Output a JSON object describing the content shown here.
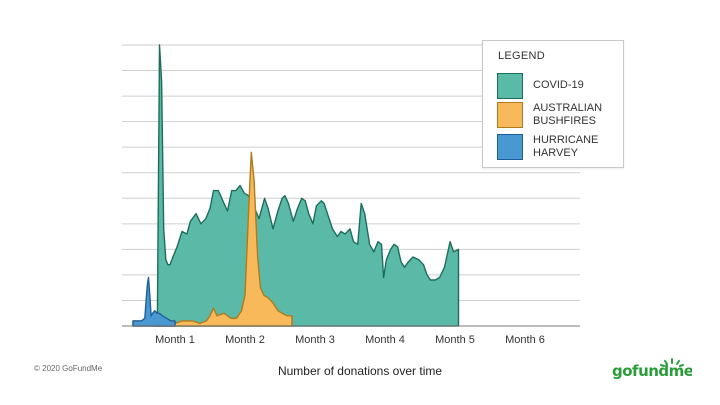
{
  "chart_data": {
    "type": "area",
    "title": "",
    "xlabel": "Number of donations over time",
    "ylabel": "",
    "x_categories": [
      "Month 1",
      "Month 2",
      "Month 3",
      "Month 4",
      "Month 5",
      "Month 6"
    ],
    "x_range": [
      0,
      6.2
    ],
    "ylim": [
      0,
      11
    ],
    "grid": "horizontal",
    "legend": {
      "title": "LEGEND",
      "position": "top-right",
      "entries": [
        {
          "label": "COVID-19",
          "color": "#5bbaa7",
          "edge": "#1c6e5b"
        },
        {
          "label": "AUSTRALIAN BUSHFIRES",
          "label_lines": [
            "AUSTRALIAN",
            "BUSHFIRES"
          ],
          "color": "#f8b95a",
          "edge": "#b07a1e"
        },
        {
          "label": "HURRICANE HARVEY",
          "label_lines": [
            "HURRICANE",
            "HARVEY"
          ],
          "color": "#4a98d2",
          "edge": "#1f5f99"
        }
      ]
    },
    "series": [
      {
        "name": "COVID-19",
        "color": "#5bbaa7",
        "edge": "#1c6e5b",
        "points": [
          [
            0.5,
            0
          ],
          [
            0.58,
            0.3
          ],
          [
            0.63,
            11
          ],
          [
            0.68,
            9.6
          ],
          [
            0.73,
            3.8
          ],
          [
            0.78,
            2.6
          ],
          [
            0.83,
            2.4
          ],
          [
            0.88,
            2.4
          ],
          [
            0.95,
            2.7
          ],
          [
            1.03,
            3.1
          ],
          [
            1.1,
            3.7
          ],
          [
            1.17,
            3.6
          ],
          [
            1.22,
            4.1
          ],
          [
            1.3,
            4.4
          ],
          [
            1.37,
            4.0
          ],
          [
            1.44,
            4.2
          ],
          [
            1.5,
            4.6
          ],
          [
            1.55,
            5.3
          ],
          [
            1.62,
            5.3
          ],
          [
            1.7,
            4.8
          ],
          [
            1.75,
            4.5
          ],
          [
            1.81,
            5.3
          ],
          [
            1.87,
            5.3
          ],
          [
            1.93,
            5.5
          ],
          [
            1.99,
            5.2
          ],
          [
            2.05,
            5.1
          ],
          [
            2.14,
            4.6
          ],
          [
            2.2,
            4.2
          ],
          [
            2.28,
            5.0
          ],
          [
            2.33,
            4.6
          ],
          [
            2.4,
            3.8
          ],
          [
            2.47,
            4.5
          ],
          [
            2.53,
            5.0
          ],
          [
            2.57,
            5.1
          ],
          [
            2.62,
            4.8
          ],
          [
            2.69,
            4.1
          ],
          [
            2.75,
            4.6
          ],
          [
            2.81,
            5.0
          ],
          [
            2.86,
            4.9
          ],
          [
            2.91,
            4.4
          ],
          [
            2.97,
            4.0
          ],
          [
            3.02,
            4.7
          ],
          [
            3.09,
            4.9
          ],
          [
            3.13,
            4.8
          ],
          [
            3.19,
            4.3
          ],
          [
            3.25,
            3.8
          ],
          [
            3.32,
            3.5
          ],
          [
            3.37,
            3.7
          ],
          [
            3.43,
            3.6
          ],
          [
            3.5,
            3.8
          ],
          [
            3.55,
            3.3
          ],
          [
            3.61,
            3.2
          ],
          [
            3.66,
            4.8
          ],
          [
            3.71,
            4.4
          ],
          [
            3.78,
            3.2
          ],
          [
            3.84,
            2.9
          ],
          [
            3.9,
            3.3
          ],
          [
            3.95,
            3.2
          ],
          [
            3.98,
            1.9
          ],
          [
            4.02,
            2.6
          ],
          [
            4.08,
            3.0
          ],
          [
            4.13,
            3.2
          ],
          [
            4.18,
            3.1
          ],
          [
            4.23,
            2.5
          ],
          [
            4.28,
            2.3
          ],
          [
            4.33,
            2.5
          ],
          [
            4.4,
            2.7
          ],
          [
            4.48,
            2.6
          ],
          [
            4.55,
            2.4
          ],
          [
            4.6,
            2.0
          ],
          [
            4.65,
            1.8
          ],
          [
            4.72,
            1.8
          ],
          [
            4.78,
            1.9
          ],
          [
            4.85,
            2.3
          ],
          [
            4.93,
            3.3
          ],
          [
            4.98,
            2.9
          ],
          [
            5.05,
            3.0
          ],
          [
            5.05,
            0
          ]
        ]
      },
      {
        "name": "AUSTRALIAN BUSHFIRES",
        "color": "#f8b95a",
        "edge": "#b07a1e",
        "points": [
          [
            0.0,
            0
          ],
          [
            0.0,
            0.2
          ],
          [
            0.35,
            0.2
          ],
          [
            0.4,
            0.3
          ],
          [
            0.5,
            0.1
          ],
          [
            0.6,
            0.1
          ],
          [
            0.7,
            0.1
          ],
          [
            0.8,
            0.1
          ],
          [
            1.0,
            0.1
          ],
          [
            1.1,
            0.2
          ],
          [
            1.25,
            0.2
          ],
          [
            1.35,
            0.1
          ],
          [
            1.45,
            0.2
          ],
          [
            1.5,
            0.4
          ],
          [
            1.55,
            0.7
          ],
          [
            1.6,
            0.4
          ],
          [
            1.7,
            0.5
          ],
          [
            1.8,
            0.3
          ],
          [
            1.88,
            0.3
          ],
          [
            1.95,
            0.6
          ],
          [
            2.0,
            1.2
          ],
          [
            2.05,
            4.4
          ],
          [
            2.09,
            6.8
          ],
          [
            2.13,
            5.7
          ],
          [
            2.18,
            2.7
          ],
          [
            2.22,
            1.5
          ],
          [
            2.27,
            1.2
          ],
          [
            2.33,
            1.1
          ],
          [
            2.4,
            0.9
          ],
          [
            2.47,
            0.6
          ],
          [
            2.53,
            0.5
          ],
          [
            2.6,
            0.4
          ],
          [
            2.67,
            0.4
          ],
          [
            2.67,
            0
          ]
        ]
      },
      {
        "name": "HURRICANE HARVEY",
        "color": "#4a98d2",
        "edge": "#1f5f99",
        "points": [
          [
            0.0,
            0
          ],
          [
            0.0,
            0.2
          ],
          [
            0.2,
            0.2
          ],
          [
            0.28,
            0.3
          ],
          [
            0.34,
            1.6
          ],
          [
            0.37,
            1.9
          ],
          [
            0.4,
            1.2
          ],
          [
            0.43,
            0.4
          ],
          [
            0.47,
            0.5
          ],
          [
            0.52,
            0.6
          ],
          [
            0.57,
            0.5
          ],
          [
            0.62,
            0.5
          ],
          [
            0.7,
            0.4
          ],
          [
            0.8,
            0.3
          ],
          [
            0.9,
            0.2
          ],
          [
            1.0,
            0.2
          ],
          [
            1.0,
            0
          ]
        ]
      }
    ]
  },
  "footer": {
    "copyright": "© 2020 GoFundMe",
    "logo_text": "gofundme"
  },
  "colors": {
    "grid": "#cfcfcf",
    "axis": "#7a7a7a",
    "logo": "#2a9d3a"
  }
}
